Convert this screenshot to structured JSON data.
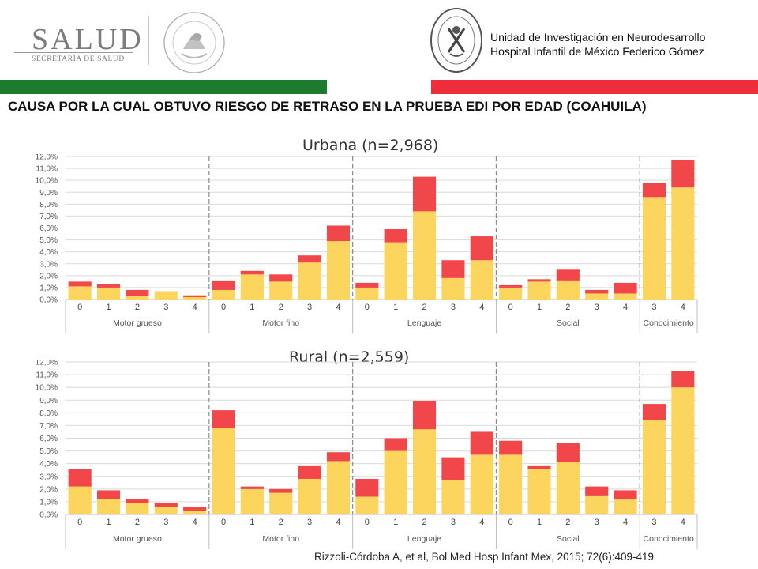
{
  "header": {
    "logo_main": "SALUD",
    "logo_sub": "SECRETARÍA DE SALUD",
    "unit_line1": "Unidad de Investigación en Neurodesarrollo",
    "unit_line2": "Hospital Infantil de México Federico Gómez"
  },
  "colors": {
    "green_band": "#1e7a2c",
    "red_band": "#ee2e3a",
    "series_base": "#fcd55e",
    "series_top": "#f2474a"
  },
  "title": "CAUSA POR LA CUAL OBTUVO RIESGO DE RETRASO EN LA PRUEBA EDI POR EDAD (COAHUILA)",
  "citation": "Rizzoli-Córdoba A, et al, Bol Med Hosp Infant Mex, 2015; 72(6):409-419",
  "chart_data": [
    {
      "type": "bar",
      "stacked": true,
      "title": "Urbana (n=2,968)",
      "ylim": [
        0,
        12
      ],
      "y_ticks": [
        "0,0%",
        "1,0%",
        "2,0%",
        "3,0%",
        "4,0%",
        "5,0%",
        "6,0%",
        "7,0%",
        "8,0%",
        "9,0%",
        "10,0%",
        "11,0%",
        "12,0%"
      ],
      "grid": true,
      "groups": [
        {
          "name": "Motor grueso",
          "categories": [
            "0",
            "1",
            "2",
            "3",
            "4"
          ],
          "base": [
            1.1,
            1.0,
            0.3,
            0.7,
            0.2
          ],
          "top": [
            0.4,
            0.3,
            0.5,
            0.0,
            0.15
          ]
        },
        {
          "name": "Motor fino",
          "categories": [
            "0",
            "1",
            "2",
            "3",
            "4"
          ],
          "base": [
            0.8,
            2.1,
            1.5,
            3.1,
            4.9
          ],
          "top": [
            0.8,
            0.3,
            0.6,
            0.6,
            1.3
          ]
        },
        {
          "name": "Lenguaje",
          "categories": [
            "0",
            "1",
            "2",
            "3",
            "4"
          ],
          "base": [
            1.0,
            4.8,
            7.4,
            1.8,
            3.3
          ],
          "top": [
            0.4,
            1.1,
            2.9,
            1.5,
            2.0
          ]
        },
        {
          "name": "Social",
          "categories": [
            "0",
            "1",
            "2",
            "3",
            "4"
          ],
          "base": [
            1.0,
            1.5,
            1.6,
            0.5,
            0.5
          ],
          "top": [
            0.2,
            0.2,
            0.9,
            0.3,
            0.9
          ]
        },
        {
          "name": "Conocimiento",
          "categories": [
            "3",
            "4"
          ],
          "base": [
            8.6,
            9.4
          ],
          "top": [
            1.2,
            2.3
          ]
        }
      ]
    },
    {
      "type": "bar",
      "stacked": true,
      "title": "Rural (n=2,559)",
      "ylim": [
        0,
        12
      ],
      "y_ticks": [
        "0,0%",
        "1,0%",
        "2,0%",
        "3,0%",
        "4,0%",
        "5,0%",
        "6,0%",
        "7,0%",
        "8,0%",
        "9,0%",
        "10,0%",
        "11,0%",
        "12,0%"
      ],
      "grid": true,
      "groups": [
        {
          "name": "Motor grueso",
          "categories": [
            "0",
            "1",
            "2",
            "3",
            "4"
          ],
          "base": [
            2.2,
            1.2,
            0.9,
            0.6,
            0.3
          ],
          "top": [
            1.4,
            0.7,
            0.3,
            0.3,
            0.3
          ]
        },
        {
          "name": "Motor fino",
          "categories": [
            "0",
            "1",
            "2",
            "3",
            "4"
          ],
          "base": [
            6.8,
            2.0,
            1.7,
            2.8,
            4.2
          ],
          "top": [
            1.4,
            0.2,
            0.3,
            1.0,
            0.7
          ]
        },
        {
          "name": "Lenguaje",
          "categories": [
            "0",
            "1",
            "2",
            "3",
            "4"
          ],
          "base": [
            1.4,
            5.0,
            6.7,
            2.7,
            4.7
          ],
          "top": [
            1.4,
            1.0,
            2.2,
            1.8,
            1.8
          ]
        },
        {
          "name": "Social",
          "categories": [
            "0",
            "1",
            "2",
            "3",
            "4"
          ],
          "base": [
            4.7,
            3.6,
            4.1,
            1.5,
            1.2
          ],
          "top": [
            1.1,
            0.2,
            1.5,
            0.7,
            0.7
          ]
        },
        {
          "name": "Conocimiento",
          "categories": [
            "3",
            "4"
          ],
          "base": [
            7.4,
            10.0
          ],
          "top": [
            1.3,
            1.3
          ]
        }
      ]
    }
  ]
}
